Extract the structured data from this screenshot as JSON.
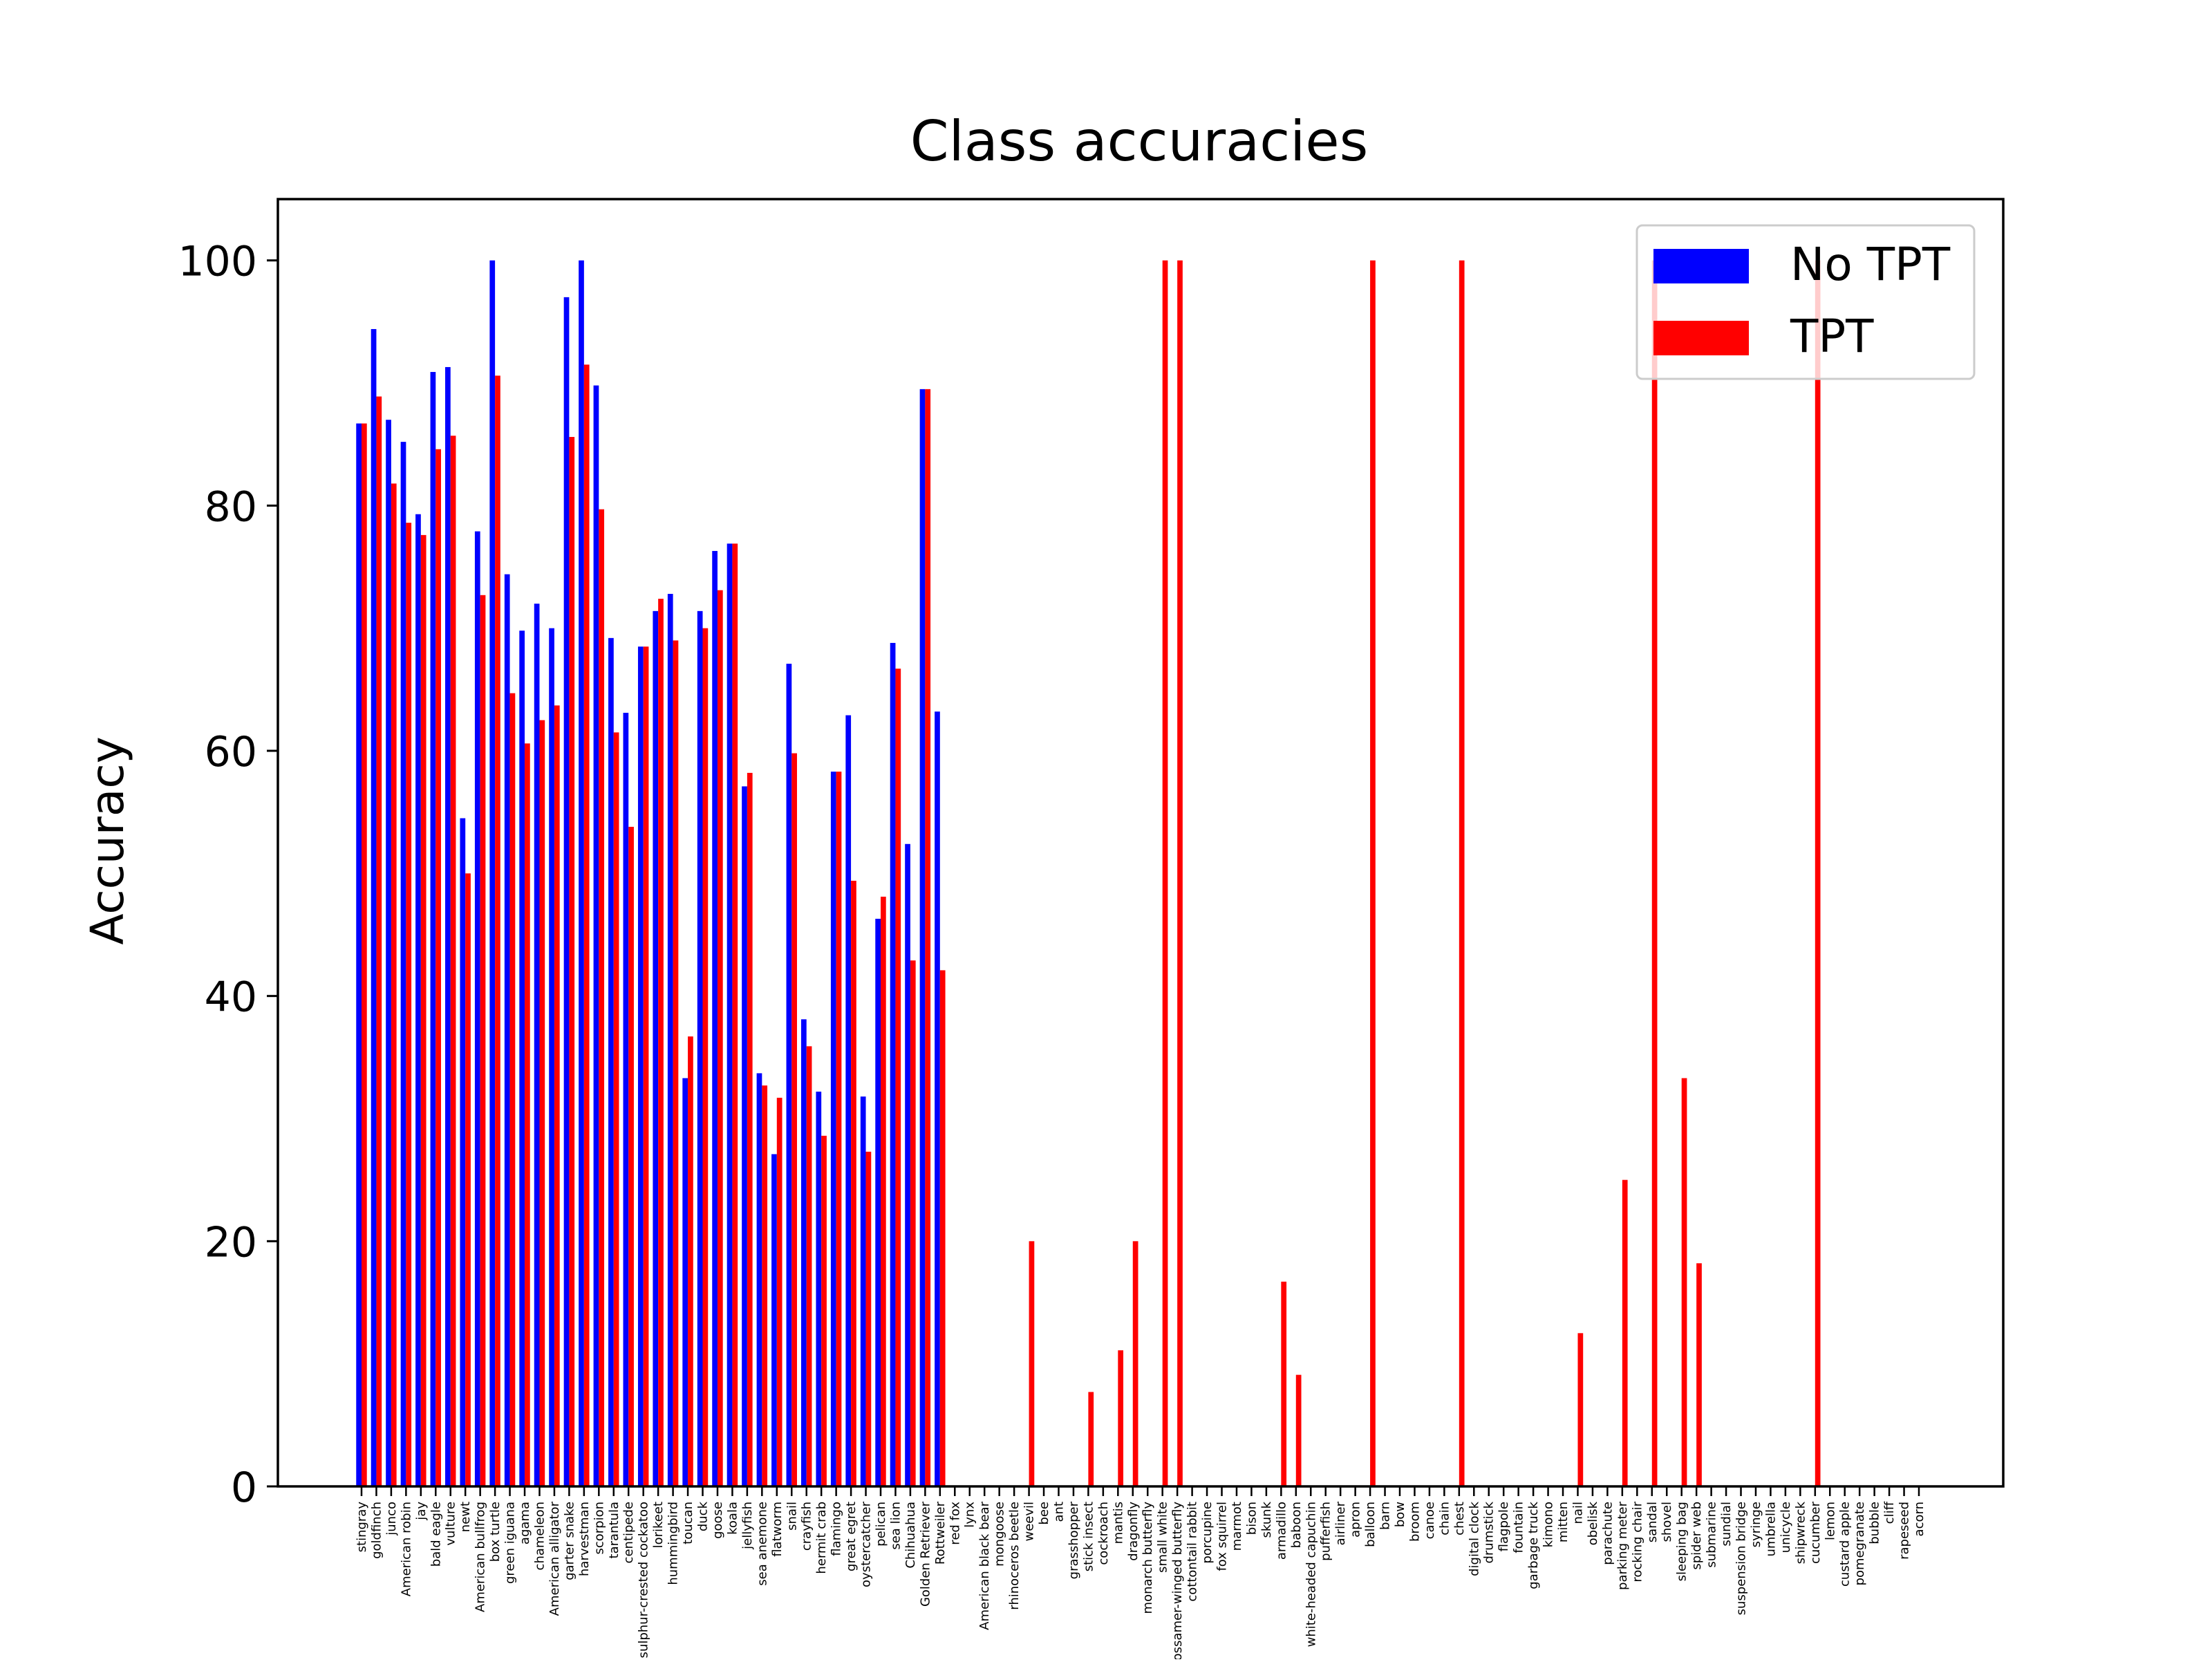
{
  "chart_data": {
    "type": "bar",
    "title": "Class accuracies",
    "xlabel": "",
    "ylabel": "Accuracy",
    "ylim": [
      0,
      105
    ],
    "yticks": [
      0,
      20,
      40,
      60,
      80,
      100
    ],
    "grid": false,
    "legend_position": "top-right",
    "categories": [
      "stingray",
      "goldfinch",
      "junco",
      "American robin",
      "jay",
      "bald eagle",
      "vulture",
      "newt",
      "American bullfrog",
      "box turtle",
      "green iguana",
      "agama",
      "chameleon",
      "American alligator",
      "garter snake",
      "harvestman",
      "scorpion",
      "tarantula",
      "centipede",
      "sulphur-crested cockatoo",
      "lorikeet",
      "hummingbird",
      "toucan",
      "duck",
      "goose",
      "koala",
      "jellyfish",
      "sea anemone",
      "flatworm",
      "snail",
      "crayfish",
      "hermit crab",
      "flamingo",
      "great egret",
      "oystercatcher",
      "pelican",
      "sea lion",
      "Chihuahua",
      "Golden Retriever",
      "Rottweiler",
      "red fox",
      "lynx",
      "American black bear",
      "mongoose",
      "rhinoceros beetle",
      "weevil",
      "bee",
      "ant",
      "grasshopper",
      "stick insect",
      "cockroach",
      "mantis",
      "dragonfly",
      "monarch butterfly",
      "small white",
      "gossamer-winged butterfly",
      "cottontail rabbit",
      "porcupine",
      "fox squirrel",
      "marmot",
      "bison",
      "skunk",
      "armadillo",
      "baboon",
      "white-headed capuchin",
      "pufferfish",
      "airliner",
      "apron",
      "balloon",
      "barn",
      "bow",
      "broom",
      "canoe",
      "chain",
      "chest",
      "digital clock",
      "drumstick",
      "flagpole",
      "fountain",
      "garbage truck",
      "kimono",
      "mitten",
      "nail",
      "obelisk",
      "parachute",
      "parking meter",
      "rocking chair",
      "sandal",
      "shovel",
      "sleeping bag",
      "spider web",
      "submarine",
      "sundial",
      "suspension bridge",
      "syringe",
      "umbrella",
      "unicycle",
      "shipwreck",
      "cucumber",
      "lemon",
      "custard apple",
      "pomegranate",
      "bubble",
      "cliff",
      "rapeseed",
      "acorn"
    ],
    "series": [
      {
        "name": "No TPT",
        "color": "#0000ff",
        "values": [
          86.7,
          94.4,
          87.0,
          85.2,
          79.3,
          90.9,
          91.3,
          54.5,
          77.9,
          100,
          74.4,
          69.8,
          72.0,
          70.0,
          97.0,
          100,
          89.8,
          69.2,
          63.1,
          68.5,
          71.4,
          72.8,
          33.3,
          71.4,
          76.3,
          76.9,
          57.1,
          33.7,
          27.1,
          67.1,
          38.1,
          32.2,
          58.3,
          62.9,
          31.8,
          46.3,
          68.8,
          52.4,
          89.5,
          63.2,
          0,
          0,
          0,
          0,
          0,
          0,
          0,
          0,
          0,
          0,
          0,
          0,
          0,
          0,
          0,
          0,
          0,
          0,
          0,
          0,
          0,
          0,
          0,
          0,
          0,
          0,
          0,
          0,
          0,
          0,
          0,
          0,
          0,
          0,
          0,
          0,
          0,
          0,
          0,
          0,
          0,
          0,
          0,
          0,
          0,
          0,
          0,
          0,
          0,
          0,
          0,
          0,
          0,
          0,
          0,
          0,
          0,
          0,
          0,
          0,
          0,
          0,
          0,
          0,
          0,
          0
        ]
      },
      {
        "name": "TPT",
        "color": "#ff0000",
        "values": [
          86.7,
          88.9,
          81.8,
          78.6,
          77.6,
          84.6,
          85.7,
          50.0,
          72.7,
          90.6,
          64.7,
          60.6,
          62.5,
          63.7,
          85.6,
          91.5,
          79.7,
          61.5,
          53.8,
          68.5,
          72.4,
          69.0,
          36.7,
          70.0,
          73.1,
          76.9,
          58.2,
          32.7,
          31.7,
          59.8,
          35.9,
          28.6,
          58.3,
          49.4,
          27.3,
          48.1,
          66.7,
          42.9,
          89.5,
          42.1,
          0,
          0,
          0,
          0,
          0,
          20,
          0,
          0,
          0,
          7.7,
          0,
          11.1,
          20,
          0,
          100,
          100,
          0,
          0,
          0,
          0,
          0,
          0,
          16.7,
          9.1,
          0,
          0,
          0,
          0,
          100,
          0,
          0,
          0,
          0,
          0,
          100,
          0,
          0,
          0,
          0,
          0,
          0,
          0,
          12.5,
          0,
          0,
          25,
          0,
          100,
          0,
          33.3,
          18.2,
          0,
          0,
          0,
          0,
          0,
          0,
          0,
          100,
          0,
          0,
          0,
          0,
          0,
          0,
          0
        ]
      }
    ]
  }
}
